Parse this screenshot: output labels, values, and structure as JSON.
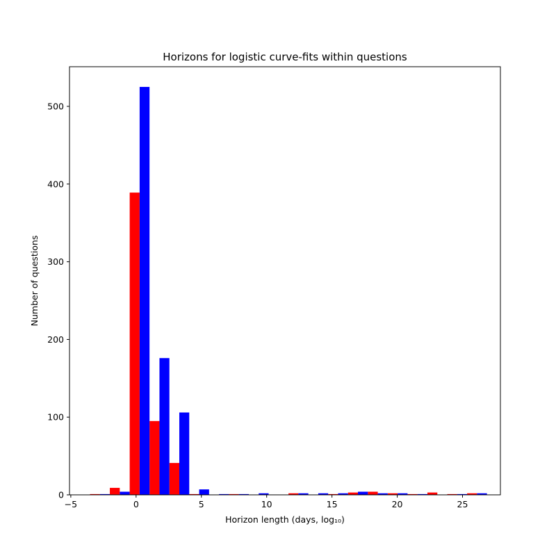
{
  "chart_data": {
    "type": "bar",
    "title": "Horizons for logistic curve-fits within questions",
    "xlabel": "Horizon length (days, log₁₀)",
    "ylabel": "Number of questions",
    "xlim": [
      -5.1,
      27.9
    ],
    "ylim": [
      0,
      551
    ],
    "xticks": [
      -5,
      0,
      5,
      10,
      15,
      20,
      25
    ],
    "yticks": [
      0,
      100,
      200,
      300,
      400,
      500
    ],
    "grid": false,
    "bin_width": 1.52,
    "series": [
      {
        "color": "#ff0000",
        "bars": [
          {
            "x": -3.15,
            "value": 1
          },
          {
            "x": -1.63,
            "value": 9
          },
          {
            "x": -0.11,
            "value": 389
          },
          {
            "x": 1.41,
            "value": 95
          },
          {
            "x": 2.93,
            "value": 41
          },
          {
            "x": 4.45,
            "value": 1
          },
          {
            "x": 7.49,
            "value": 1
          },
          {
            "x": 12.05,
            "value": 2
          },
          {
            "x": 15.09,
            "value": 1
          },
          {
            "x": 16.61,
            "value": 3
          },
          {
            "x": 18.13,
            "value": 4
          },
          {
            "x": 19.65,
            "value": 2
          },
          {
            "x": 21.17,
            "value": 1
          },
          {
            "x": 22.69,
            "value": 3
          },
          {
            "x": 24.21,
            "value": 1
          },
          {
            "x": 25.73,
            "value": 2
          }
        ]
      },
      {
        "color": "#0000ff",
        "bars": [
          {
            "x": -2.39,
            "value": 1
          },
          {
            "x": -0.87,
            "value": 4
          },
          {
            "x": 0.65,
            "value": 525
          },
          {
            "x": 2.17,
            "value": 176
          },
          {
            "x": 3.69,
            "value": 106
          },
          {
            "x": 5.21,
            "value": 7
          },
          {
            "x": 6.73,
            "value": 1
          },
          {
            "x": 8.25,
            "value": 1
          },
          {
            "x": 9.77,
            "value": 2
          },
          {
            "x": 12.81,
            "value": 2
          },
          {
            "x": 14.33,
            "value": 2
          },
          {
            "x": 15.85,
            "value": 2
          },
          {
            "x": 17.37,
            "value": 4
          },
          {
            "x": 18.89,
            "value": 2
          },
          {
            "x": 20.41,
            "value": 2
          },
          {
            "x": 21.93,
            "value": 1
          },
          {
            "x": 24.97,
            "value": 1
          },
          {
            "x": 26.49,
            "value": 2
          }
        ]
      }
    ]
  }
}
